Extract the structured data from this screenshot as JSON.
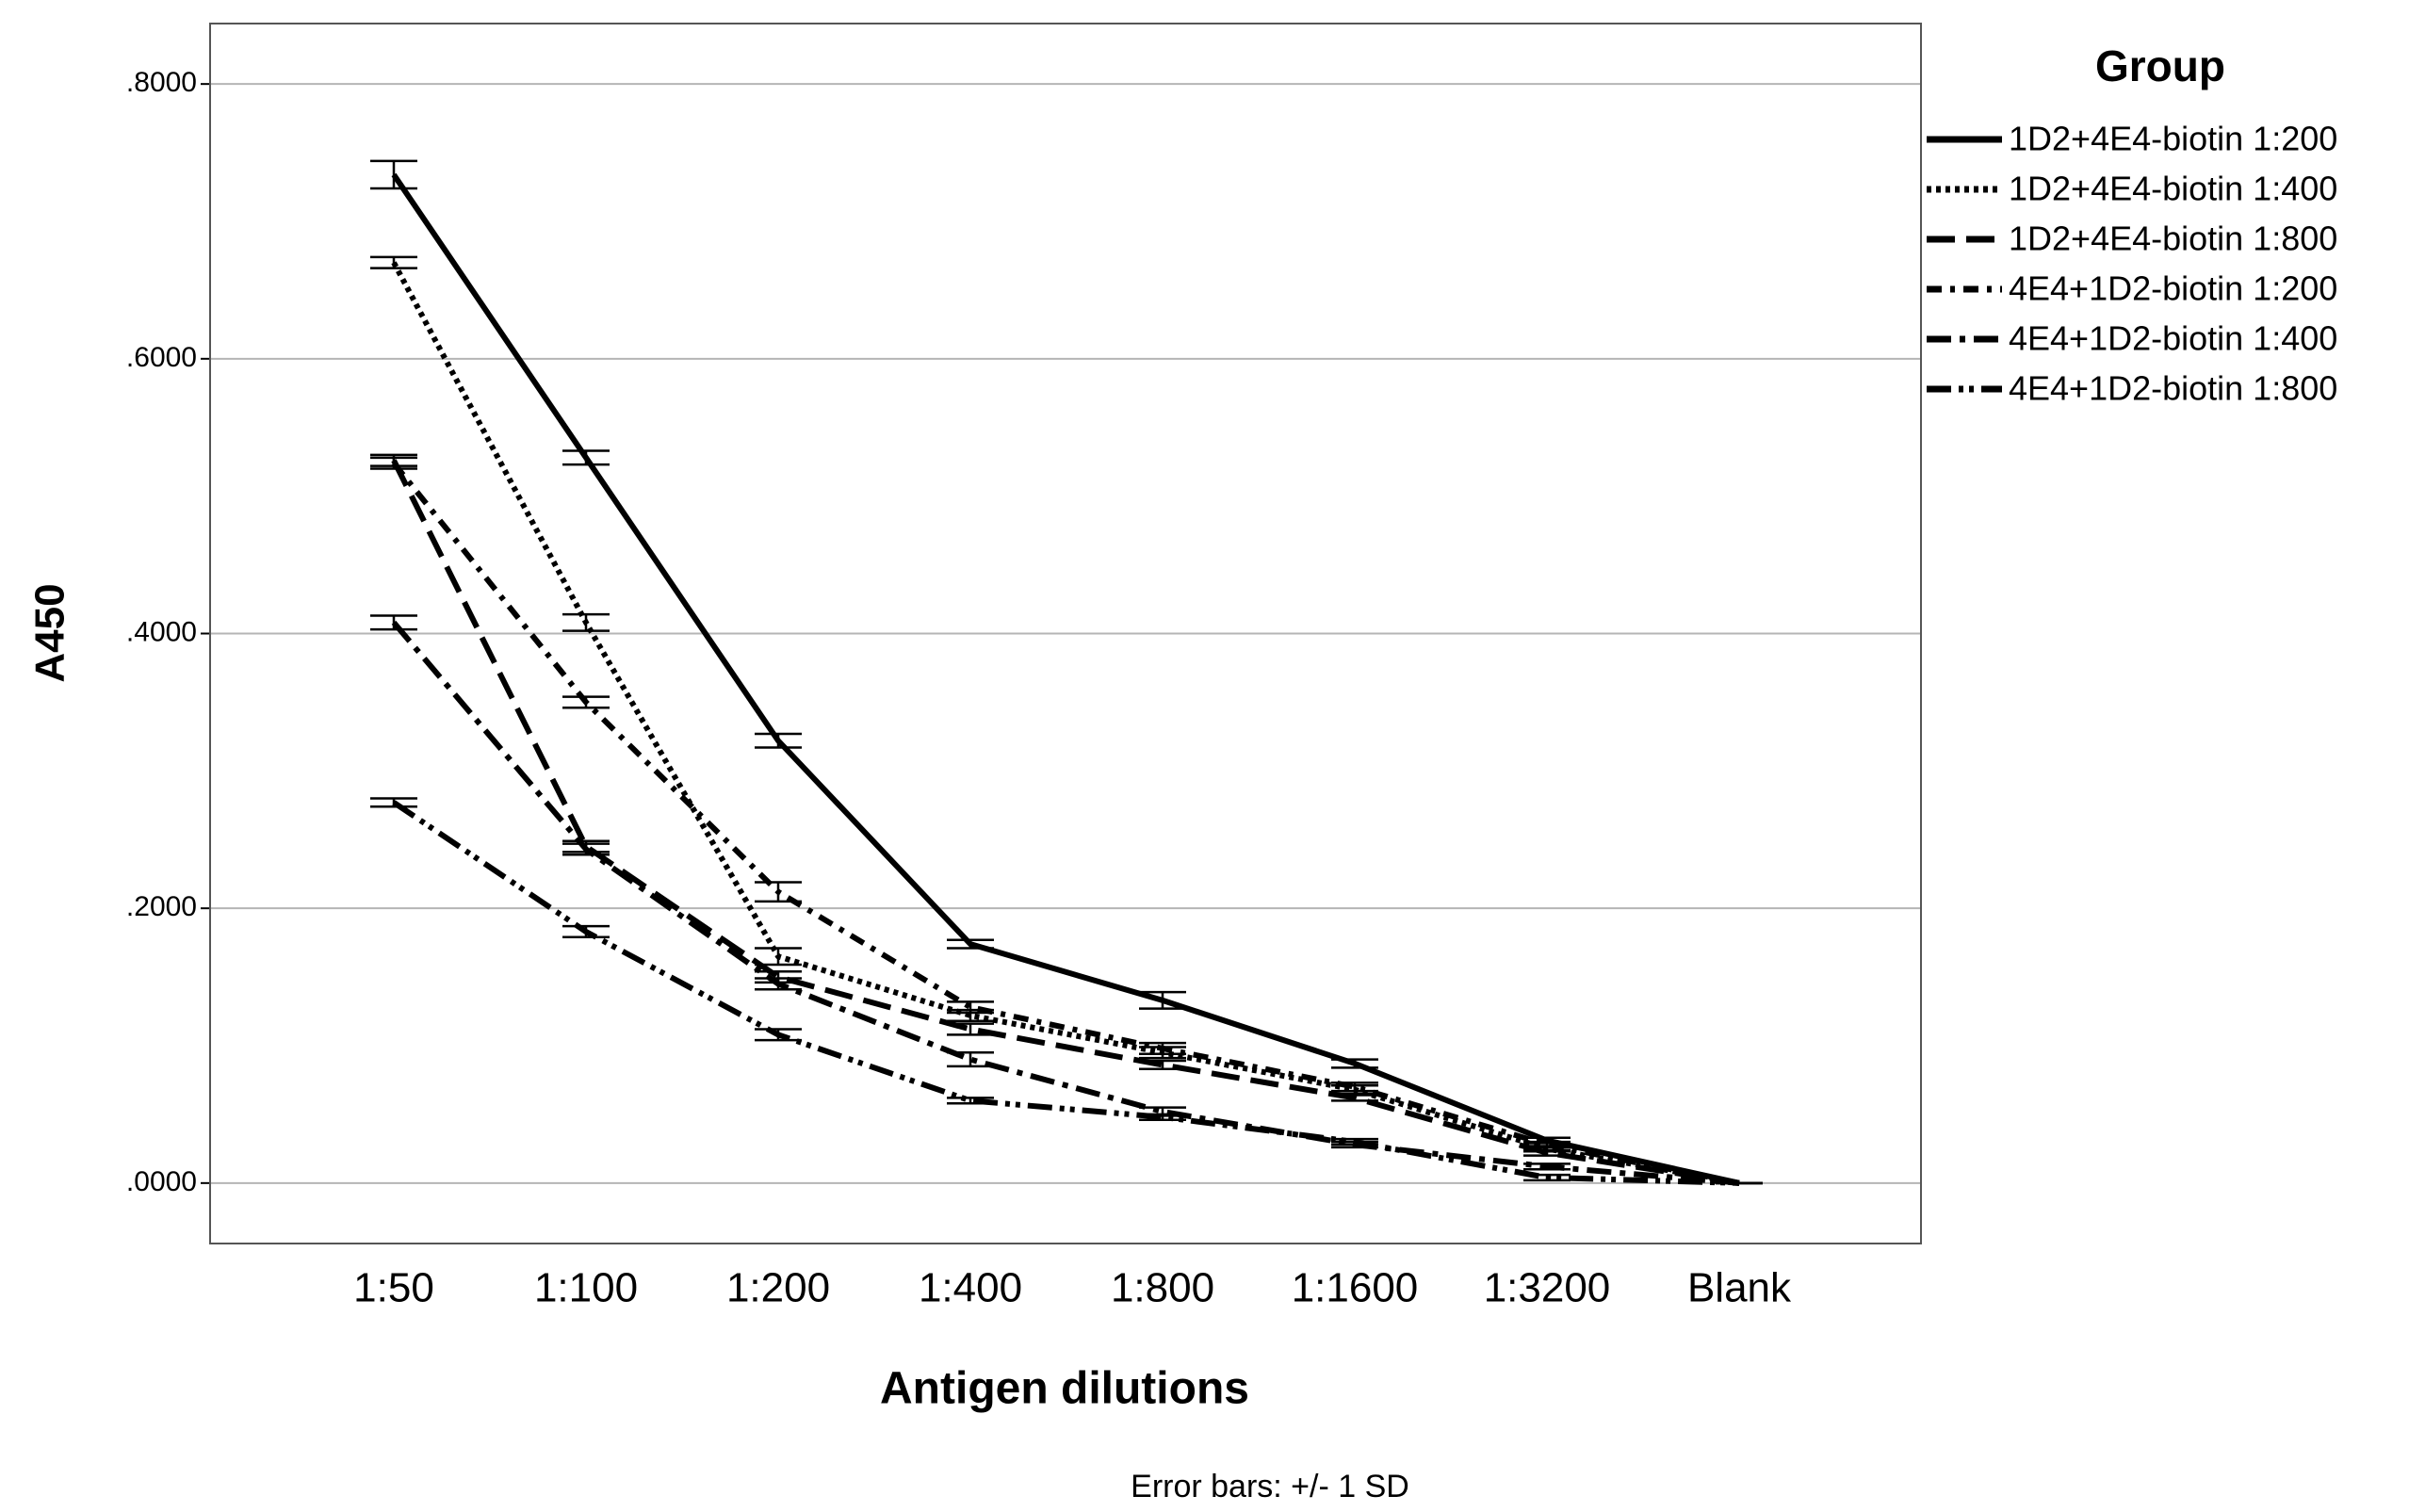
{
  "chart_data": {
    "type": "line",
    "x_label": "Antigen dilutions",
    "y_label": "A450",
    "note": "Error bars: +/- 1 SD",
    "legend_title": "Group",
    "legend": "right",
    "grid": true,
    "categories": [
      "1:50",
      "1:100",
      "1:200",
      "1:400",
      "1:800",
      "1:1600",
      "1:3200",
      "Blank"
    ],
    "ylim": [
      -0.044,
      0.844
    ],
    "yticks": [
      {
        "value": 0,
        "label": ".0000"
      },
      {
        "value": 0.2,
        "label": ".2000"
      },
      {
        "value": 0.4,
        "label": ".4000"
      },
      {
        "value": 0.6,
        "label": ".6000"
      },
      {
        "value": 0.8,
        "label": ".8000"
      }
    ],
    "series": [
      {
        "name": "1D2+4E4-biotin 1:200",
        "color": "#000000",
        "dash": "none",
        "values": [
          0.734,
          0.528,
          0.322,
          0.174,
          0.133,
          0.087,
          0.031,
          0
        ],
        "errors": [
          0.01,
          0.005,
          0.005,
          0.003,
          0.006,
          0.003,
          0.002,
          0
        ]
      },
      {
        "name": "1D2+4E4-biotin 1:400",
        "color": "#000000",
        "dash": "5,5",
        "values": [
          0.67,
          0.408,
          0.165,
          0.122,
          0.095,
          0.068,
          0.025,
          0
        ],
        "errors": [
          0.004,
          0.006,
          0.006,
          0.004,
          0.004,
          0.003,
          0.002,
          0
        ]
      },
      {
        "name": "1D2+4E4-biotin 1:800",
        "color": "#000000",
        "dash": "30,12",
        "values": [
          0.526,
          0.245,
          0.15,
          0.112,
          0.086,
          0.062,
          0.022,
          0
        ],
        "errors": [
          0.004,
          0.004,
          0.004,
          0.004,
          0.003,
          0.002,
          0.002,
          0
        ]
      },
      {
        "name": "4E4+1D2-biotin 1:200",
        "color": "#000000",
        "dash": "16,9,5,9",
        "values": [
          0.524,
          0.35,
          0.212,
          0.128,
          0.098,
          0.07,
          0.028,
          0
        ],
        "errors": [
          0.004,
          0.004,
          0.007,
          0.004,
          0.004,
          0.003,
          0.002,
          0
        ]
      },
      {
        "name": "4E4+1D2-biotin 1:400",
        "color": "#000000",
        "dash": "26,9,6,9",
        "values": [
          0.408,
          0.243,
          0.145,
          0.09,
          0.052,
          0.028,
          0.012,
          0
        ],
        "errors": [
          0.005,
          0.004,
          0.004,
          0.005,
          0.003,
          0.002,
          0.002,
          0
        ]
      },
      {
        "name": "4E4+1D2-biotin 1:800",
        "color": "#000000",
        "dash": "26,8,5,6,5,8",
        "values": [
          0.277,
          0.183,
          0.108,
          0.06,
          0.048,
          0.03,
          0.004,
          0
        ],
        "errors": [
          0.003,
          0.004,
          0.004,
          0.002,
          0.002,
          0.002,
          0.002,
          0
        ]
      }
    ]
  }
}
